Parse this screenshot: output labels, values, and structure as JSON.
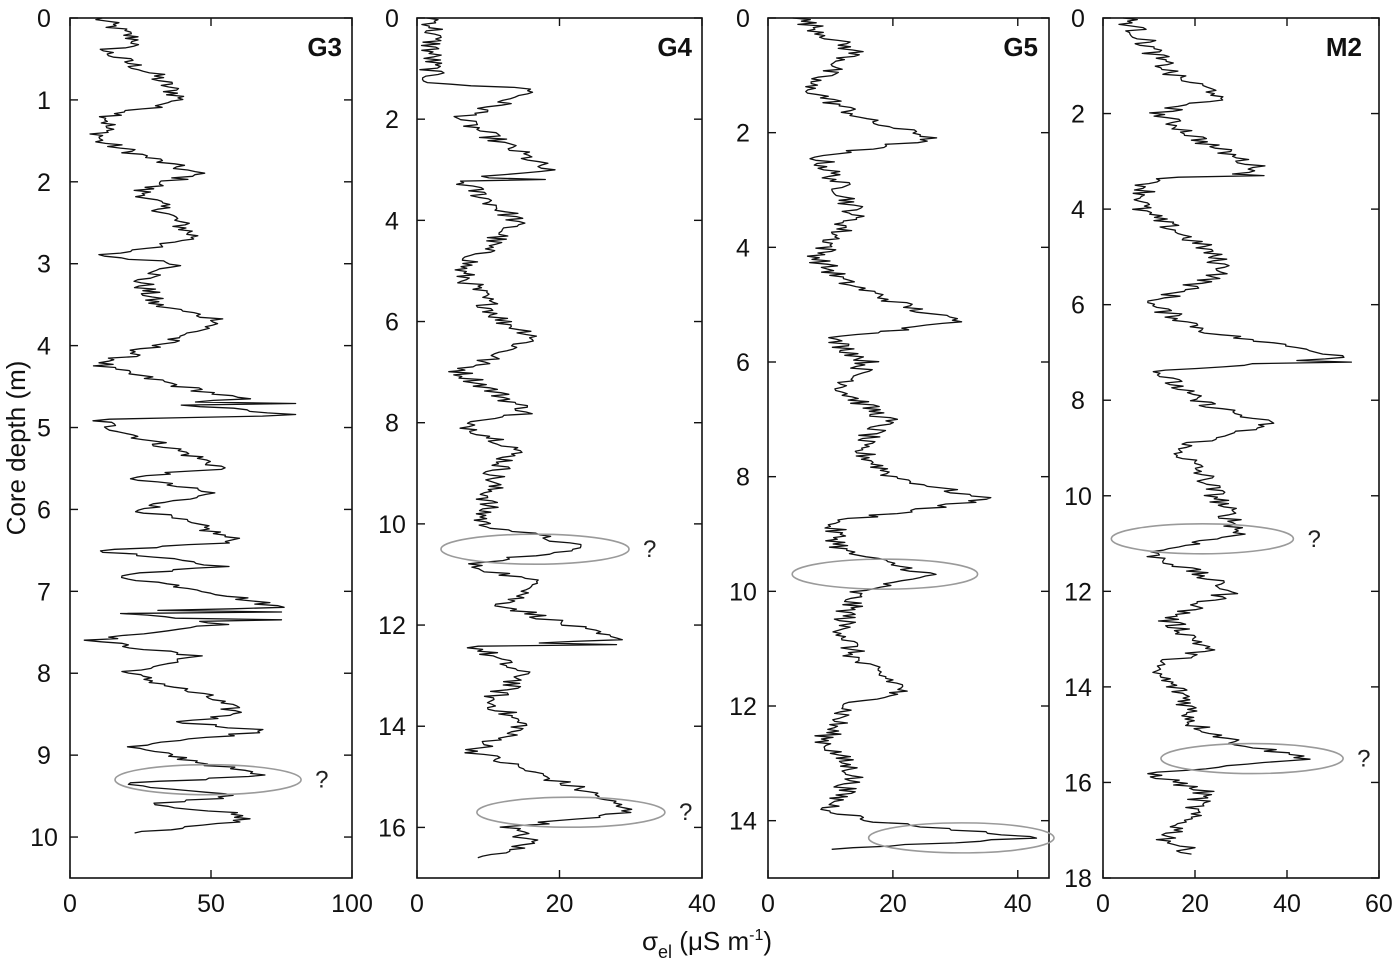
{
  "chart_data": [
    {
      "type": "line",
      "panel": "G3",
      "ylabel": "Core depth (m)",
      "xlim": [
        0,
        100
      ],
      "ylim": [
        0,
        10.5
      ],
      "x_ticks": [
        "0",
        "50",
        "100"
      ],
      "y_ticks": [
        "0",
        "1",
        "2",
        "3",
        "4",
        "5",
        "6",
        "7",
        "8",
        "9",
        "10"
      ],
      "x_tick_values": [
        0,
        50,
        100
      ],
      "y_tick_values": [
        0,
        1,
        2,
        3,
        4,
        5,
        6,
        7,
        8,
        9,
        10
      ],
      "profile_depths": [
        0,
        0.3,
        0.4,
        0.7,
        1.0,
        1.2,
        1.5,
        1.9,
        2.1,
        2.4,
        2.7,
        2.9,
        3.0,
        3.2,
        3.5,
        3.7,
        4.0,
        4.25,
        4.5,
        4.65,
        4.7,
        4.85,
        4.9,
        5.0,
        5.3,
        5.5,
        5.6,
        5.8,
        6.0,
        6.2,
        6.4,
        6.5,
        6.7,
        6.8,
        7.0,
        7.2,
        7.25,
        7.4,
        7.6,
        7.8,
        8.0,
        8.3,
        8.5,
        8.6,
        8.7,
        8.9,
        9.0,
        9.25,
        9.35,
        9.5,
        9.6,
        9.7,
        9.8,
        9.95
      ],
      "profile_values": [
        10,
        25,
        12,
        30,
        40,
        15,
        10,
        45,
        25,
        35,
        45,
        10,
        40,
        25,
        30,
        55,
        30,
        10,
        40,
        60,
        35,
        80,
        10,
        15,
        40,
        55,
        20,
        50,
        25,
        45,
        60,
        10,
        55,
        15,
        50,
        75,
        15,
        55,
        8,
        45,
        20,
        50,
        60,
        40,
        70,
        20,
        35,
        68,
        20,
        60,
        30,
        55,
        62,
        22
      ],
      "highlighted_depths": [
        9.3
      ],
      "spike_depths": [
        1.0,
        4.7,
        4.85,
        5.5,
        7.25,
        7.35
      ]
    },
    {
      "type": "line",
      "panel": "G4",
      "xlim": [
        0,
        40
      ],
      "ylim": [
        0,
        17
      ],
      "x_ticks": [
        "0",
        "20",
        "40"
      ],
      "y_ticks": [
        "0",
        "2",
        "4",
        "6",
        "8",
        "10",
        "12",
        "14",
        "16"
      ],
      "x_tick_values": [
        0,
        20,
        40
      ],
      "y_tick_values": [
        0,
        2,
        4,
        6,
        8,
        10,
        12,
        14,
        16
      ],
      "profile_depths": [
        0,
        0.6,
        1.2,
        1.3,
        1.4,
        2.0,
        2.8,
        3.0,
        3.2,
        4.0,
        5.0,
        6.0,
        6.3,
        7.0,
        7.8,
        8.0,
        8.5,
        9.0,
        10.0,
        10.3,
        10.5,
        10.8,
        11.2,
        11.6,
        12.3,
        12.4,
        13.0,
        13.5,
        14.0,
        14.5,
        14.9,
        15.3,
        15.7,
        16.0,
        16.3,
        16.6
      ],
      "profile_values": [
        2.5,
        2,
        2,
        2,
        17,
        6,
        16,
        18,
        6,
        14,
        6,
        12,
        17,
        6,
        16,
        6,
        14,
        11,
        9,
        19,
        23,
        7,
        18,
        12,
        28,
        8,
        15,
        10,
        15,
        8,
        16,
        24,
        30,
        13,
        16,
        10
      ],
      "highlighted_depths": [
        10.5,
        15.7
      ],
      "spike_depths": [
        3.2,
        10.4,
        12.4,
        15.3,
        15.7
      ]
    },
    {
      "type": "line",
      "panel": "G5",
      "xlim": [
        0,
        45
      ],
      "ylim": [
        0,
        15
      ],
      "x_ticks": [
        "0",
        "20",
        "40"
      ],
      "y_ticks": [
        "0",
        "2",
        "4",
        "6",
        "8",
        "10",
        "12",
        "14"
      ],
      "x_tick_values": [
        0,
        20,
        40
      ],
      "y_tick_values": [
        0,
        2,
        4,
        6,
        8,
        10,
        12,
        14
      ],
      "profile_depths": [
        0,
        0.6,
        1.2,
        1.8,
        2.1,
        2.4,
        3.0,
        3.4,
        4.2,
        4.6,
        5.1,
        5.3,
        5.6,
        6.0,
        6.5,
        7.0,
        7.5,
        8.0,
        8.4,
        8.8,
        9.3,
        9.7,
        10.0,
        10.6,
        11.2,
        11.7,
        12.0,
        12.6,
        13.2,
        13.8,
        14.0,
        14.3,
        14.5
      ],
      "profile_values": [
        5,
        14,
        6,
        16,
        27,
        8,
        12,
        14,
        8,
        12,
        24,
        31,
        10,
        16,
        12,
        19,
        14,
        20,
        35,
        10,
        12,
        26,
        14,
        12,
        14,
        22,
        13,
        9,
        14,
        10,
        16,
        43,
        10
      ],
      "highlighted_depths": [
        9.7,
        14.3
      ],
      "spike_depths": [
        2.1,
        5.3,
        8.4,
        14.3
      ]
    },
    {
      "type": "line",
      "panel": "M2",
      "xlim": [
        0,
        60
      ],
      "ylim": [
        0,
        18
      ],
      "x_ticks": [
        "0",
        "20",
        "40",
        "60"
      ],
      "y_ticks": [
        "0",
        "2",
        "4",
        "6",
        "8",
        "10",
        "12",
        "14",
        "16",
        "18"
      ],
      "x_tick_values": [
        0,
        20,
        40,
        60
      ],
      "y_tick_values": [
        0,
        2,
        4,
        6,
        8,
        10,
        12,
        14,
        16,
        18
      ],
      "profile_depths": [
        0,
        0.6,
        1.2,
        1.6,
        2.0,
        2.6,
        3.2,
        3.4,
        4.0,
        4.8,
        5.3,
        6.0,
        6.6,
        7.1,
        7.4,
        8.0,
        8.5,
        9.0,
        9.6,
        10.2,
        10.8,
        11.2,
        11.6,
        12.0,
        12.6,
        13.2,
        13.6,
        14.2,
        14.8,
        15.2,
        15.5,
        15.8,
        16.2,
        16.8,
        17.2,
        17.5
      ],
      "profile_values": [
        5,
        10,
        15,
        26,
        12,
        22,
        35,
        10,
        8,
        22,
        27,
        10,
        24,
        54,
        12,
        20,
        36,
        16,
        22,
        26,
        30,
        10,
        20,
        28,
        14,
        23,
        10,
        18,
        20,
        30,
        45,
        10,
        22,
        18,
        14,
        20
      ],
      "highlighted_depths": [
        10.9,
        15.5
      ],
      "spike_depths": [
        1.7,
        3.3,
        7.2,
        8.4,
        15.5
      ]
    }
  ],
  "figure": {
    "y_axis_title": "Core depth (m)",
    "x_axis_title_main": "σ",
    "x_axis_title_sub": "el",
    "x_axis_title_unit_prefix": " (μS m",
    "x_axis_title_exp": "-1",
    "x_axis_title_unit_suffix": ")",
    "question_mark": "?",
    "colors": {
      "line": "#111111",
      "ellipse": "#9a9a9a",
      "background": "#ffffff"
    }
  }
}
